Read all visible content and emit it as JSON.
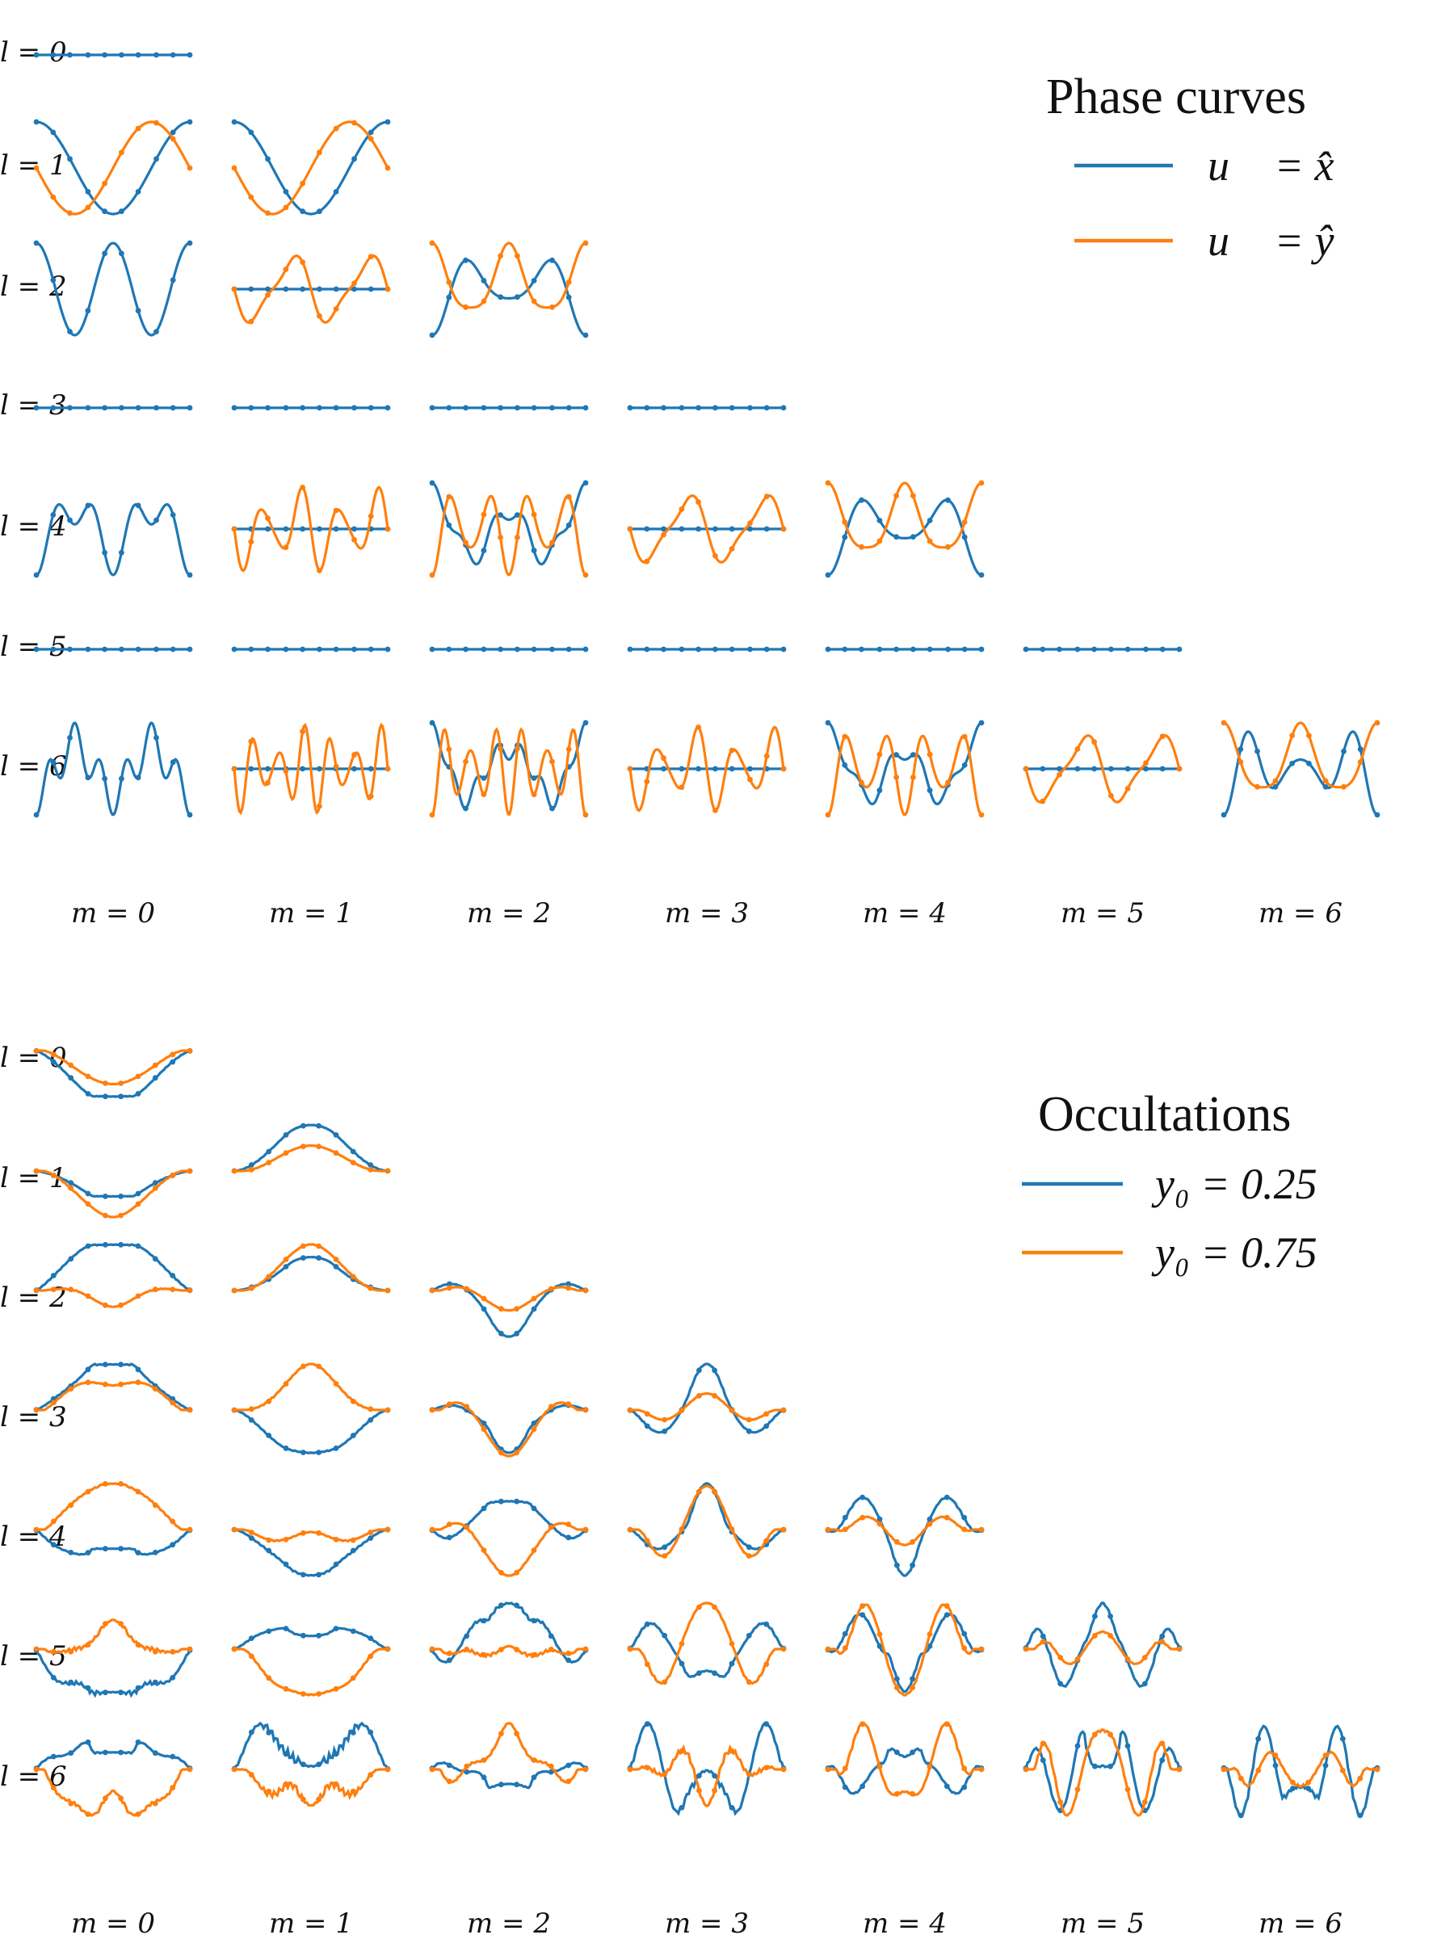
{
  "colors": {
    "blue": "#1f77b4",
    "orange": "#ff7f0e"
  },
  "chart_data": [
    {
      "type": "line",
      "panel": "phase",
      "legend": {
        "title": "Phase curves",
        "entries": [
          {
            "color": "blue",
            "label": "u⃗ = x̂"
          },
          {
            "color": "orange",
            "label": "u⃗ = ŷ"
          }
        ],
        "placement": "top-right"
      },
      "row_labels": [
        "l = 0",
        "l = 1",
        "l = 2",
        "l = 3",
        "l = 4",
        "l = 5",
        "l = 6"
      ],
      "col_labels": [
        "m = 0",
        "m = 1",
        "m = 2",
        "m = 3",
        "m = 4",
        "m = 5",
        "m = 6"
      ],
      "x_domain": [
        0,
        1
      ],
      "y_domain": [
        -1,
        1
      ],
      "marker_count": 10,
      "grid": false,
      "axes_visible": false
    },
    {
      "type": "line",
      "panel": "occultation",
      "legend": {
        "title": "Occultations",
        "entries": [
          {
            "color": "blue",
            "label": "y₀ = 0.25"
          },
          {
            "color": "orange",
            "label": "y₀ = 0.75"
          }
        ],
        "placement": "top-right"
      },
      "row_labels": [
        "l = 0",
        "l = 1",
        "l = 2",
        "l = 3",
        "l = 4",
        "l = 5",
        "l = 6"
      ],
      "col_labels": [
        "m = 0",
        "m = 1",
        "m = 2",
        "m = 3",
        "m = 4",
        "m = 5",
        "m = 6"
      ],
      "x_domain": [
        -1.5,
        1.5
      ],
      "y_domain": [
        -1,
        1
      ],
      "marker_count": 10,
      "grid": false,
      "axes_visible": false
    }
  ]
}
